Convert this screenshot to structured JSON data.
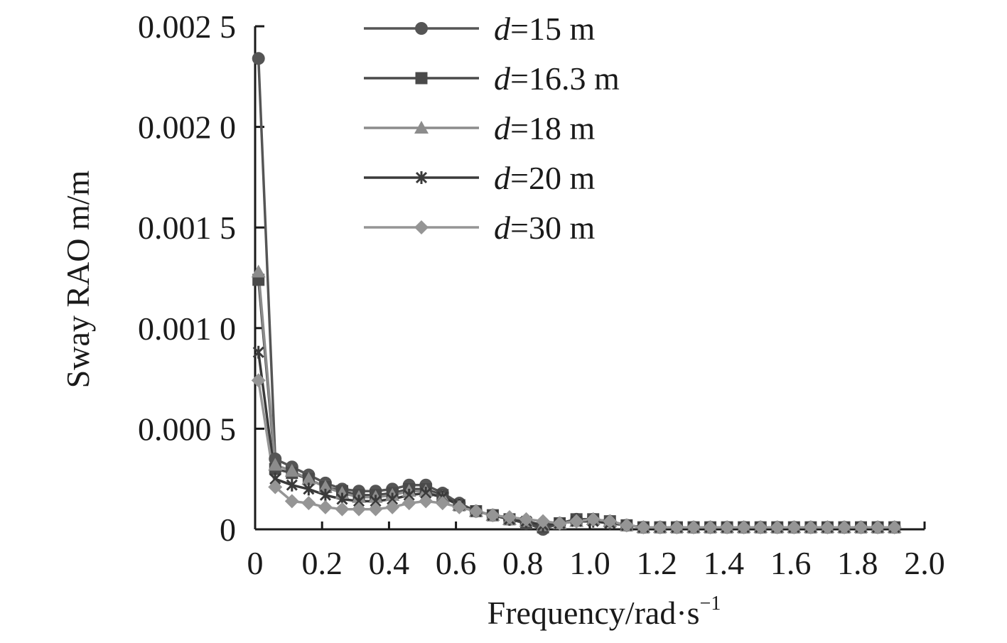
{
  "chart_data": {
    "type": "line",
    "xlabel": "Frequency/rad·s",
    "xlabel_sup": "−1",
    "ylabel": "Sway RAO m/m",
    "xlim": [
      0,
      2.0
    ],
    "ylim": [
      0,
      0.0025
    ],
    "x_ticks": [
      {
        "value": 0,
        "label": "0"
      },
      {
        "value": 0.2,
        "label": "0.2"
      },
      {
        "value": 0.4,
        "label": "0.4"
      },
      {
        "value": 0.6,
        "label": "0.6"
      },
      {
        "value": 0.8,
        "label": "0.8"
      },
      {
        "value": 1.0,
        "label": "1.0"
      },
      {
        "value": 1.2,
        "label": "1.2"
      },
      {
        "value": 1.4,
        "label": "1.4"
      },
      {
        "value": 1.6,
        "label": "1.6"
      },
      {
        "value": 1.8,
        "label": "1.8"
      },
      {
        "value": 2.0,
        "label": "2.0"
      }
    ],
    "y_ticks": [
      {
        "value": 0,
        "label": "0"
      },
      {
        "value": 0.0005,
        "label": "0.000 5"
      },
      {
        "value": 0.001,
        "label": "0.001 0"
      },
      {
        "value": 0.0015,
        "label": "0.001 5"
      },
      {
        "value": 0.002,
        "label": "0.002 0"
      },
      {
        "value": 0.0025,
        "label": "0.002 5"
      }
    ],
    "grid": false,
    "legend_position": "top-right",
    "x": [
      0.01,
      0.06,
      0.11,
      0.16,
      0.21,
      0.26,
      0.31,
      0.36,
      0.41,
      0.46,
      0.51,
      0.56,
      0.61,
      0.66,
      0.71,
      0.76,
      0.81,
      0.86,
      0.91,
      0.96,
      1.01,
      1.06,
      1.11,
      1.16,
      1.21,
      1.26,
      1.31,
      1.36,
      1.41,
      1.46,
      1.51,
      1.56,
      1.61,
      1.66,
      1.71,
      1.76,
      1.81,
      1.86,
      1.91
    ],
    "series": [
      {
        "name_prefix": "d",
        "name_suffix": "=15 m",
        "marker": "circle",
        "color": "#555555",
        "values": [
          0.00234,
          0.00035,
          0.00031,
          0.00027,
          0.00023,
          0.0002,
          0.00019,
          0.00019,
          0.0002,
          0.00022,
          0.00022,
          0.00018,
          0.00013,
          9e-05,
          7e-05,
          5e-05,
          3e-05,
          0.0,
          3e-05,
          5e-05,
          5e-05,
          4e-05,
          2e-05,
          1e-05,
          1e-05,
          1e-05,
          1e-05,
          1e-05,
          1e-05,
          1e-05,
          1e-05,
          1e-05,
          1e-05,
          1e-05,
          1e-05,
          1e-05,
          1e-05,
          1e-05,
          1e-05
        ]
      },
      {
        "name_prefix": "d",
        "name_suffix": "=16.3 m",
        "marker": "square",
        "color": "#4a4a4a",
        "values": [
          0.00124,
          0.0003,
          0.00028,
          0.00025,
          0.00021,
          0.00019,
          0.00017,
          0.00017,
          0.00018,
          0.0002,
          0.0002,
          0.00017,
          0.00012,
          9e-05,
          7e-05,
          5e-05,
          3e-05,
          1e-05,
          3e-05,
          5e-05,
          5e-05,
          4e-05,
          2e-05,
          1e-05,
          1e-05,
          1e-05,
          1e-05,
          1e-05,
          1e-05,
          1e-05,
          1e-05,
          1e-05,
          1e-05,
          1e-05,
          1e-05,
          1e-05,
          1e-05,
          1e-05,
          1e-05
        ]
      },
      {
        "name_prefix": "d",
        "name_suffix": "=18 m",
        "marker": "triangle",
        "color": "#8c8c8c",
        "values": [
          0.00128,
          0.00032,
          0.00029,
          0.00025,
          0.00021,
          0.00018,
          0.00016,
          0.00016,
          0.00017,
          0.00019,
          0.00019,
          0.00016,
          0.00012,
          9e-05,
          7e-05,
          5e-05,
          4e-05,
          2e-05,
          3e-05,
          4e-05,
          5e-05,
          4e-05,
          2e-05,
          1e-05,
          1e-05,
          1e-05,
          1e-05,
          1e-05,
          1e-05,
          1e-05,
          1e-05,
          1e-05,
          1e-05,
          1e-05,
          1e-05,
          1e-05,
          1e-05,
          1e-05,
          1e-05
        ]
      },
      {
        "name_prefix": "d",
        "name_suffix": "=20 m",
        "marker": "star",
        "color": "#3a3a3a",
        "values": [
          0.00088,
          0.00025,
          0.00022,
          0.0002,
          0.00017,
          0.00015,
          0.00014,
          0.00014,
          0.00015,
          0.00017,
          0.00018,
          0.00016,
          0.00012,
          9e-05,
          7e-05,
          5e-05,
          4e-05,
          2e-05,
          3e-05,
          4e-05,
          4e-05,
          3e-05,
          2e-05,
          1e-05,
          1e-05,
          1e-05,
          1e-05,
          1e-05,
          1e-05,
          1e-05,
          1e-05,
          1e-05,
          1e-05,
          1e-05,
          1e-05,
          1e-05,
          1e-05,
          1e-05,
          1e-05
        ]
      },
      {
        "name_prefix": "d",
        "name_suffix": "=30 m",
        "marker": "diamond",
        "color": "#959595",
        "values": [
          0.00074,
          0.00021,
          0.00014,
          0.00013,
          0.00011,
          0.0001,
          0.0001,
          0.0001,
          0.00011,
          0.00013,
          0.00014,
          0.00013,
          0.00011,
          9e-05,
          7e-05,
          6e-05,
          5e-05,
          4e-05,
          3e-05,
          4e-05,
          5e-05,
          4e-05,
          2e-05,
          1e-05,
          1e-05,
          1e-05,
          1e-05,
          1e-05,
          1e-05,
          1e-05,
          1e-05,
          1e-05,
          1e-05,
          1e-05,
          1e-05,
          1e-05,
          1e-05,
          1e-05,
          1e-05
        ]
      }
    ]
  }
}
